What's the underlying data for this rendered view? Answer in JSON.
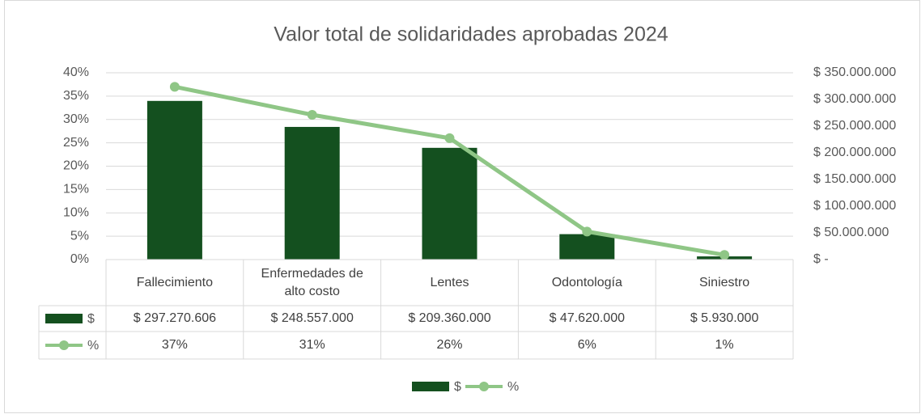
{
  "chart_data": {
    "type": "bar-line",
    "title": "Valor total de solidaridades aprobadas 2024",
    "categories": [
      "Fallecimiento",
      "Enfermedades de alto costo",
      "Lentes",
      "Odontología",
      "Siniestro"
    ],
    "series": [
      {
        "name": "$",
        "type": "bar",
        "axis": "y2",
        "color": "#14501f",
        "values": [
          297270606,
          248557000,
          209360000,
          47620000,
          5930000
        ],
        "value_labels": [
          "$ 297.270.606",
          "$ 248.557.000",
          "$ 209.360.000",
          "$ 47.620.000",
          "$ 5.930.000"
        ]
      },
      {
        "name": "%",
        "type": "line",
        "axis": "y",
        "color": "#8fc686",
        "values": [
          37,
          31,
          26,
          6,
          1
        ],
        "value_labels": [
          "37%",
          "31%",
          "26%",
          "6%",
          "1%"
        ]
      }
    ],
    "ylim": [
      0,
      40
    ],
    "yticks": [
      {
        "value": 0,
        "label": "0%"
      },
      {
        "value": 5,
        "label": "5%"
      },
      {
        "value": 10,
        "label": "10%"
      },
      {
        "value": 15,
        "label": "15%"
      },
      {
        "value": 20,
        "label": "20%"
      },
      {
        "value": 25,
        "label": "25%"
      },
      {
        "value": 30,
        "label": "30%"
      },
      {
        "value": 35,
        "label": "35%"
      },
      {
        "value": 40,
        "label": "40%"
      }
    ],
    "y2lim": [
      0,
      350000000
    ],
    "y2ticks": [
      {
        "value": 0,
        "label": "$ -"
      },
      {
        "value": 50000000,
        "label": "$ 50.000.000"
      },
      {
        "value": 100000000,
        "label": "$ 100.000.000"
      },
      {
        "value": 150000000,
        "label": "$ 150.000.000"
      },
      {
        "value": 200000000,
        "label": "$ 200.000.000"
      },
      {
        "value": 250000000,
        "label": "$ 250.000.000"
      },
      {
        "value": 300000000,
        "label": "$ 300.000.000"
      },
      {
        "value": 350000000,
        "label": "$ 350.000.000"
      }
    ],
    "grid": true,
    "legend": "bottom",
    "data_table": true
  }
}
